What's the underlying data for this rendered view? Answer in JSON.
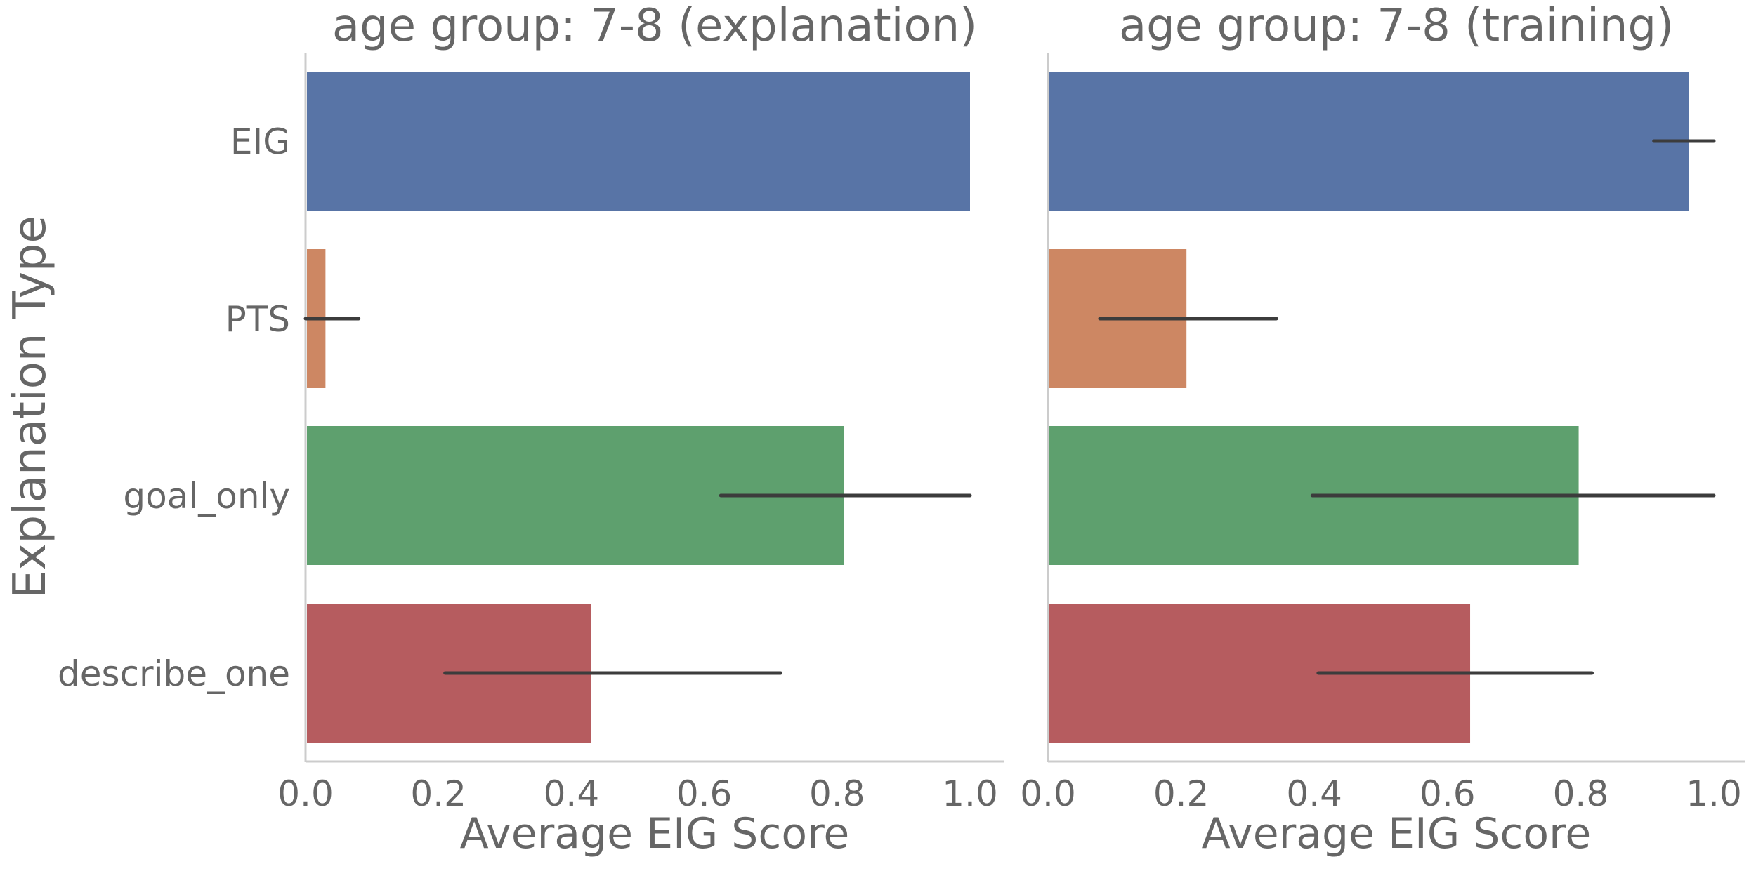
{
  "chart_data": {
    "type": "bar",
    "orientation": "horizontal",
    "ylabel": "Explanation Type",
    "categories": [
      "EIG",
      "PTS",
      "goal_only",
      "describe_one"
    ],
    "colors": [
      "#5874a6",
      "#cd8763",
      "#5ea06e",
      "#b65c5f"
    ],
    "error_bar_color": "#3c3c3c",
    "xlim": [
      0,
      1.05
    ],
    "xticks": [
      0.0,
      0.2,
      0.4,
      0.6,
      0.8,
      1.0
    ],
    "xtick_labels": [
      "0.0",
      "0.2",
      "0.4",
      "0.6",
      "0.8",
      "1.0"
    ],
    "panels": [
      {
        "title": "age group: 7-8 (explanation)",
        "xlabel": "Average EIG Score",
        "values": [
          1.0,
          0.03,
          0.81,
          0.43
        ],
        "errors": [
          null,
          [
            0.0,
            0.08
          ],
          [
            0.625,
            1.0
          ],
          [
            0.21,
            0.715
          ]
        ]
      },
      {
        "title": "age group: 7-8 (training)",
        "xlabel": "Average EIG Score",
        "values": [
          0.963,
          0.208,
          0.797,
          0.634
        ],
        "errors": [
          [
            0.91,
            1.0
          ],
          [
            0.078,
            0.343
          ],
          [
            0.397,
            1.0
          ],
          [
            0.406,
            0.817
          ]
        ]
      }
    ]
  }
}
